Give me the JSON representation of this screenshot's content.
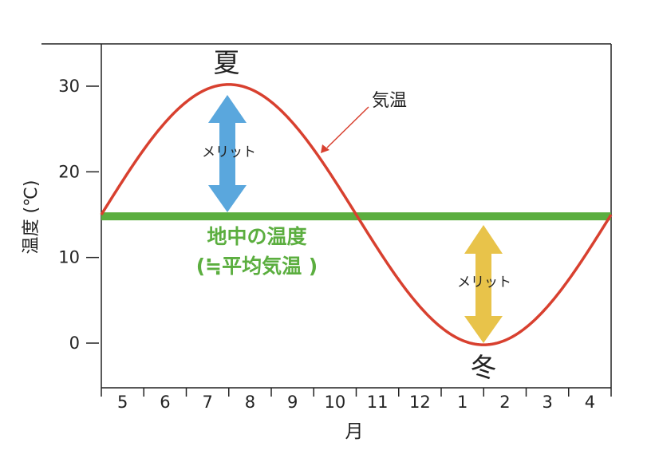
{
  "chart_data": {
    "type": "line",
    "ylabel": "温度 (℃)",
    "xlabel": "月",
    "categories": [
      "5",
      "6",
      "7",
      "8",
      "9",
      "10",
      "11",
      "12",
      "1",
      "2",
      "3",
      "4"
    ],
    "ylim": [
      -5,
      35
    ],
    "yticks": [
      0,
      10,
      20,
      30
    ],
    "grid": false,
    "series": [
      {
        "name": "気温",
        "type": "sine",
        "mean": 15,
        "amplitude": 15.2,
        "peak_x": 8,
        "period_months": 12,
        "color": "#d8402f"
      },
      {
        "name": "地中の温度 (≒平均気温 )",
        "type": "constant",
        "value": 14.8,
        "color": "#5bae3f"
      }
    ],
    "annotations": {
      "summer": "夏",
      "winter": "冬",
      "air_temp_label": "気温",
      "merit_summer": "メリット",
      "merit_winter": "メリット",
      "ground_label_line1": "地中の温度",
      "ground_label_line2": "(≒平均気温 )"
    },
    "arrow_colors": {
      "summer": "#5aa7dd",
      "winter": "#e8c34a"
    }
  }
}
